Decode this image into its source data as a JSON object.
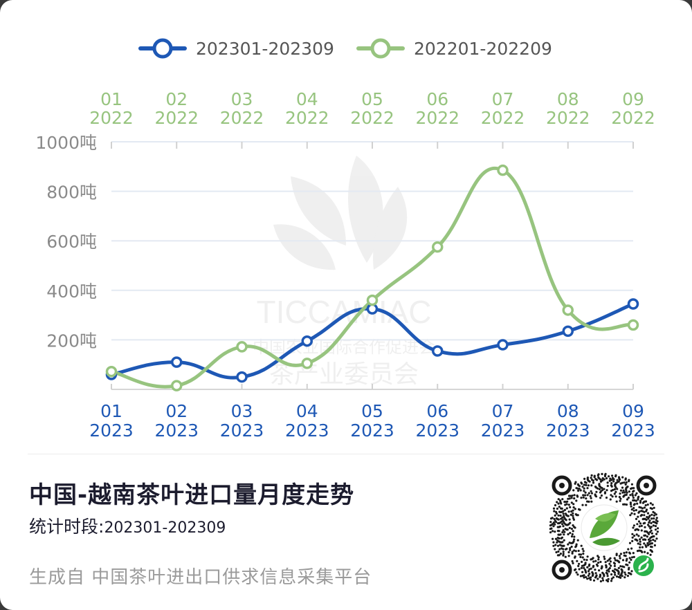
{
  "chart_data": {
    "type": "line",
    "title": "",
    "y_tick_labels": [
      "200吨",
      "400吨",
      "600吨",
      "800吨",
      "1000吨"
    ],
    "ylim": [
      0,
      1000
    ],
    "unit": "吨",
    "grid": true,
    "legend_position": "top-center",
    "series": [
      {
        "name": "202301-202309",
        "color": "#1e58b5",
        "axis": "bottom",
        "x_labels": [
          {
            "m": "01",
            "y": "2023"
          },
          {
            "m": "02",
            "y": "2023"
          },
          {
            "m": "03",
            "y": "2023"
          },
          {
            "m": "04",
            "y": "2023"
          },
          {
            "m": "05",
            "y": "2023"
          },
          {
            "m": "06",
            "y": "2023"
          },
          {
            "m": "07",
            "y": "2023"
          },
          {
            "m": "08",
            "y": "2023"
          },
          {
            "m": "09",
            "y": "2023"
          }
        ],
        "values": [
          60,
          110,
          50,
          195,
          325,
          155,
          180,
          235,
          345
        ]
      },
      {
        "name": "202201-202209",
        "color": "#97c47f",
        "axis": "top",
        "x_labels": [
          {
            "m": "01",
            "y": "2022"
          },
          {
            "m": "02",
            "y": "2022"
          },
          {
            "m": "03",
            "y": "2022"
          },
          {
            "m": "04",
            "y": "2022"
          },
          {
            "m": "05",
            "y": "2022"
          },
          {
            "m": "06",
            "y": "2022"
          },
          {
            "m": "07",
            "y": "2022"
          },
          {
            "m": "08",
            "y": "2022"
          },
          {
            "m": "09",
            "y": "2022"
          }
        ],
        "values": [
          72,
          15,
          172,
          105,
          360,
          575,
          885,
          320,
          260
        ]
      }
    ]
  },
  "watermark": {
    "text_en": "TICCAMIAC",
    "text_cn_line1": "中国农业国际合作促进会",
    "text_cn_line2": "茶产业委员会"
  },
  "footer": {
    "title": "中国-越南茶叶进口量月度走势",
    "period_label": "统计时段:",
    "period_value": "202301-202309",
    "source": "生成自  中国茶叶进出口供求信息采集平台"
  },
  "qr_icon": "mini-program-qr-code-icon"
}
